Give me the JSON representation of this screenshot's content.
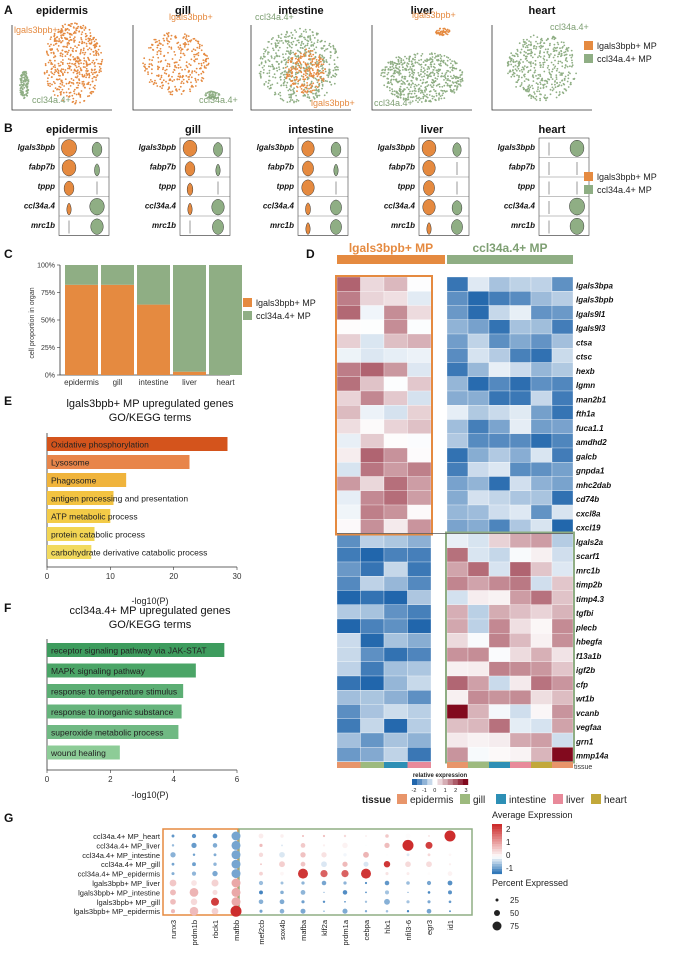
{
  "colors": {
    "lgals": "#E58A40",
    "ccl": "#8FAE84",
    "lgals_dark": "#C8641F"
  },
  "panelA": {
    "letter": "A",
    "tissues": [
      {
        "name": "epidermis",
        "label1": "lgals3bpb+",
        "label2": "ccl34a.4+"
      },
      {
        "name": "gill",
        "label1": "lgals3bpb+",
        "label2": "ccl34a.4+"
      },
      {
        "name": "intestine",
        "label1": "ccl34a.4+",
        "label2": "lgals3bpb+"
      },
      {
        "name": "liver",
        "label1": "lgals3bpb+",
        "label2": "ccl34a.4+"
      },
      {
        "name": "heart",
        "label1": "ccl34a.4+",
        "label2": ""
      }
    ],
    "legend": [
      "lgals3bpb+ MP",
      "ccl34a.4+ MP"
    ]
  },
  "panelB": {
    "letter": "B",
    "tissues": [
      "epidermis",
      "gill",
      "intestine",
      "liver",
      "heart"
    ],
    "genes": [
      "lgals3bpb",
      "fabp7b",
      "tppp",
      "ccl34a.4",
      "mrc1b"
    ],
    "legend": [
      "lgals3bpb+ MP",
      "ccl34a.4+ MP"
    ]
  },
  "panelC": {
    "letter": "C",
    "ylabel": "cell proportion in organ",
    "yticks": [
      "0%",
      "25%",
      "50%",
      "75%",
      "100%"
    ],
    "legend": [
      "lgals3bpb+ MP",
      "ccl34a.4+ MP"
    ]
  },
  "panelD": {
    "letter": "D",
    "group1": "lgals3bpb+ MP",
    "group2": "ccl34a.4+ MP",
    "colorbar_label": "relative expression",
    "colorbar_ticks": [
      "-2",
      "-1",
      "0",
      "1",
      "2",
      "3"
    ],
    "tissue_label": "tissue",
    "genes": [
      "lgals3bpa",
      "lgals3bpb",
      "lgals9l1",
      "lgals9l3",
      "ctsa",
      "ctsc",
      "hexb",
      "lgmn",
      "man2b1",
      "fth1a",
      "fuca1.1",
      "amdhd2",
      "galcb",
      "gnpda1",
      "mhc2dab",
      "cd74b",
      "cxcl8a",
      "cxcl19",
      "lgals2a",
      "scarf1",
      "mrc1b",
      "timp2b",
      "timp4.3",
      "tgfbi",
      "plecb",
      "hbegfa",
      "f13a1b",
      "igf2b",
      "cfp",
      "wt1b",
      "vcanb",
      "vegfaa",
      "grn1",
      "mmp14a"
    ],
    "legend_title": "tissue",
    "legend_items": [
      {
        "name": "epidermis",
        "color": "#E8956A"
      },
      {
        "name": "gill",
        "color": "#9DBA7E"
      },
      {
        "name": "intestine",
        "color": "#2D8FB5"
      },
      {
        "name": "liver",
        "color": "#E88A9A"
      },
      {
        "name": "heart",
        "color": "#C2A83A"
      }
    ]
  },
  "panelE": {
    "letter": "E",
    "title1": "lgals3bpb+ MP upregulated genes",
    "title2": "GO/KEGG terms",
    "xlabel": "-log10(P)",
    "xticks": [
      "0",
      "10",
      "20",
      "30"
    ]
  },
  "panelF": {
    "letter": "F",
    "title1": "ccl34a.4+ MP upregulated genes",
    "title2": "GO/KEGG terms",
    "xlabel": "-log10(P)",
    "xticks": [
      "0",
      "2",
      "4",
      "6"
    ]
  },
  "panelG": {
    "letter": "G",
    "rows": [
      "ccl34a.4+ MP_heart",
      "ccl34a.4+ MP_liver",
      "ccl34a.4+ MP_intestine",
      "ccl34a.4+ MP_gill",
      "ccl34a.4+ MP_epidermis",
      "lgals3bpb+ MP_liver",
      "lgals3bpb+ MP_intestine",
      "lgals3bpb+ MP_gill",
      "lgals3bpb+ MP_epidermis"
    ],
    "cols": [
      "runx3",
      "prdm1b",
      "rbck1",
      "mafbb",
      "mef2cb",
      "sox4b",
      "mafba",
      "klf2a",
      "prdm1a",
      "cebpa",
      "hlx1",
      "nfil3-6",
      "egr3",
      "id1"
    ],
    "avg_title": "Average Expression",
    "avg_ticks": [
      "2",
      "1",
      "0",
      "-1"
    ],
    "pct_title": "Percent Expressed",
    "pct_ticks": [
      "25",
      "50",
      "75"
    ]
  },
  "chart_data": [
    {
      "type": "bar",
      "panel": "C",
      "categories": [
        "epidermis",
        "gill",
        "intestine",
        "liver",
        "heart"
      ],
      "series": [
        {
          "name": "lgals3bpb+ MP",
          "values": [
            82,
            82,
            64,
            3,
            0
          ]
        },
        {
          "name": "ccl34a.4+ MP",
          "values": [
            18,
            18,
            36,
            97,
            100
          ]
        }
      ],
      "ylabel": "cell proportion in organ",
      "ylim": [
        0,
        100
      ],
      "stacked": true
    },
    {
      "type": "bar",
      "panel": "E",
      "orientation": "horizontal",
      "categories": [
        "Oxidative phosphorylation",
        "Lysosome",
        "Phagosome",
        "antigen processing and presentation",
        "ATP metabolic process",
        "protein catabolic process",
        "carbohydrate derivative catabolic process"
      ],
      "values": [
        28.5,
        22.5,
        12.5,
        10.5,
        10.0,
        7.5,
        7.0
      ],
      "colors": [
        "#D4541C",
        "#E8854A",
        "#F0B43C",
        "#F3C341",
        "#F3CB47",
        "#F2D553",
        "#F2DA5E"
      ],
      "xlabel": "-log10(P)",
      "xlim": [
        0,
        30
      ]
    },
    {
      "type": "bar",
      "panel": "F",
      "orientation": "horizontal",
      "categories": [
        "receptor signaling pathway via JAK-STAT",
        "MAPK signaling pathway",
        "response to temperature stimulus",
        "response to inorganic substance",
        "superoxide metabolic process",
        "wound healing"
      ],
      "values": [
        5.6,
        4.7,
        4.3,
        4.25,
        4.15,
        2.3
      ],
      "colors": [
        "#3E9C5E",
        "#4BA567",
        "#5CAE74",
        "#66B47C",
        "#70B983",
        "#8DCC97"
      ],
      "xlabel": "-log10(P)",
      "xlim": [
        0,
        6
      ]
    }
  ]
}
